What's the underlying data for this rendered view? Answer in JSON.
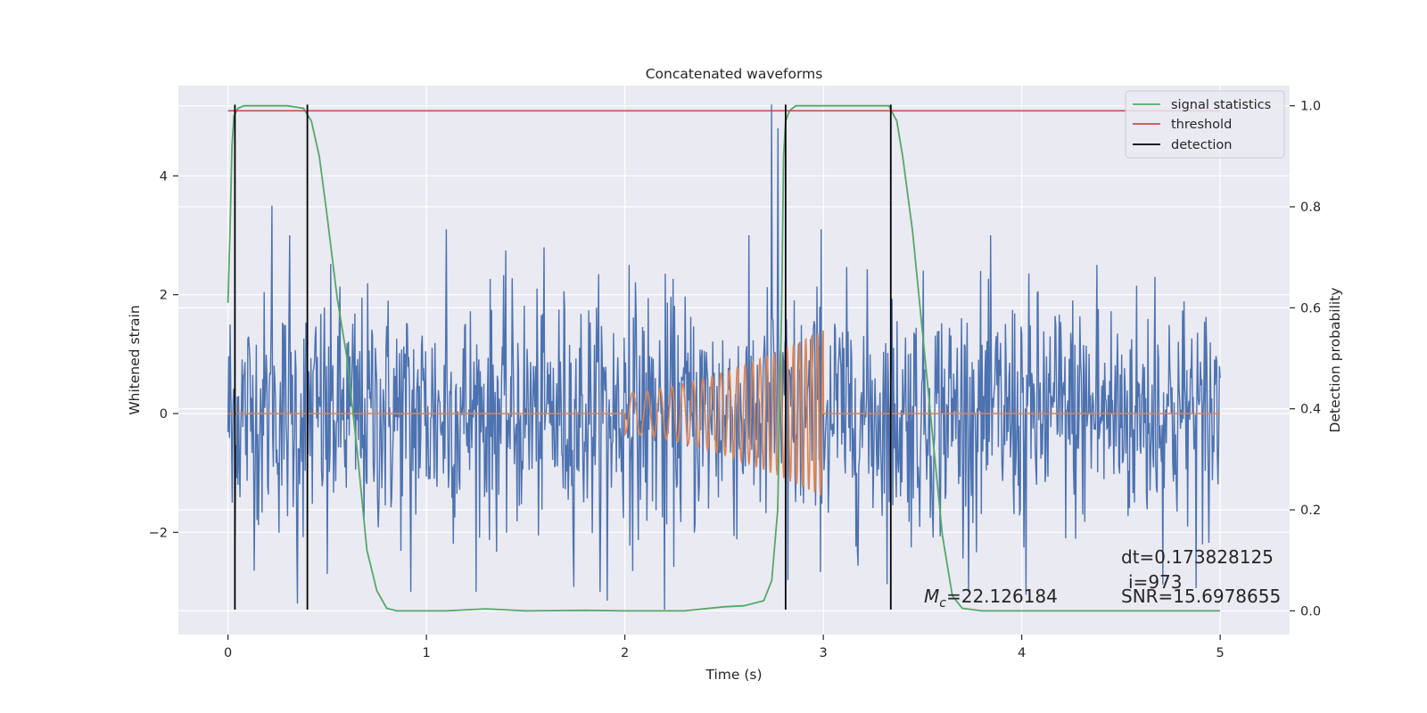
{
  "chart_data": {
    "type": "line",
    "title": "Concatenated waveforms",
    "xlabel": "Time (s)",
    "ylabel": "Whitened strain",
    "ylabel_right": "Detection probability",
    "xlim": [
      -0.25,
      5.35
    ],
    "ylim": [
      -3.72,
      5.52
    ],
    "ylim_right": [
      -0.047,
      1.04
    ],
    "x_ticks": [
      0,
      1,
      2,
      3,
      4,
      5
    ],
    "y_ticks": [
      -2,
      0,
      2,
      4
    ],
    "y_ticks_right": [
      0.0,
      0.2,
      0.4,
      0.6,
      0.8,
      1.0
    ],
    "grid": true,
    "legend_position": "top-right",
    "colors": {
      "noise": "#4c72b0",
      "template": "#dd8452",
      "signal_statistics": "#55a868",
      "threshold": "#c44e52",
      "detection": "#000000",
      "plot_background": "#eaeaf2"
    },
    "series": [
      {
        "name": "signal statistics",
        "axis": "right",
        "x": [
          0.0,
          0.01,
          0.02,
          0.03,
          0.05,
          0.08,
          0.12,
          0.2,
          0.3,
          0.38,
          0.42,
          0.46,
          0.5,
          0.55,
          0.6,
          0.65,
          0.7,
          0.75,
          0.8,
          0.85,
          0.95,
          1.1,
          1.3,
          1.5,
          1.8,
          2.0,
          2.3,
          2.5,
          2.6,
          2.7,
          2.74,
          2.77,
          2.79,
          2.8,
          2.81,
          2.83,
          2.86,
          2.9,
          3.0,
          3.2,
          3.33,
          3.37,
          3.4,
          3.45,
          3.5,
          3.55,
          3.6,
          3.65,
          3.7,
          3.8,
          4.0,
          4.5,
          5.0
        ],
        "y": [
          0.61,
          0.75,
          0.92,
          0.98,
          0.995,
          1.0,
          1.0,
          1.0,
          1.0,
          0.995,
          0.97,
          0.9,
          0.78,
          0.62,
          0.5,
          0.32,
          0.12,
          0.04,
          0.005,
          0.0,
          0.0,
          0.0,
          0.004,
          0.0,
          0.001,
          0.0,
          0.0,
          0.008,
          0.01,
          0.02,
          0.06,
          0.2,
          0.6,
          0.9,
          0.97,
          0.99,
          1.0,
          1.0,
          1.0,
          1.0,
          1.0,
          0.97,
          0.9,
          0.75,
          0.55,
          0.35,
          0.15,
          0.03,
          0.005,
          0.0,
          0.0,
          0.0,
          0.0
        ]
      },
      {
        "name": "threshold",
        "axis": "right",
        "x": [
          0.0,
          5.0
        ],
        "y": [
          0.99,
          0.99
        ]
      },
      {
        "name": "detection",
        "axis": "left",
        "type": "vlines",
        "x": [
          0.035,
          0.4,
          2.81,
          3.34
        ],
        "ymin": -3.3,
        "ymax": 5.2
      },
      {
        "axis": "left",
        "description_free": true,
        "x_start": 0.0,
        "x_end": 5.0,
        "typical_amplitude": 1.4,
        "peak_points": [
          [
            0.01,
            1.5
          ],
          [
            0.02,
            -1.5
          ],
          [
            0.22,
            3.5
          ],
          [
            0.31,
            3.0
          ],
          [
            0.35,
            -3.2
          ],
          [
            0.5,
            -2.7
          ],
          [
            0.92,
            -3.0
          ],
          [
            1.1,
            3.1
          ],
          [
            1.91,
            -3.15
          ],
          [
            2.02,
            2.5
          ],
          [
            2.2,
            -3.3
          ],
          [
            2.74,
            5.2
          ],
          [
            2.77,
            4.8
          ],
          [
            2.82,
            -2.8
          ],
          [
            2.99,
            3.1
          ],
          [
            4.02,
            -3.05
          ],
          [
            4.38,
            2.5
          ],
          [
            4.67,
            2.3
          ],
          [
            4.91,
            -2.2
          ],
          [
            5.0,
            0.6
          ]
        ]
      },
      {
        "axis": "left",
        "description_free": true,
        "x_start": 2.0,
        "x_end": 3.0,
        "amplitude_start": 0.35,
        "amplitude_end": 1.4,
        "frequency_start_hz": 12,
        "frequency_end_hz": 35,
        "baseline": 0.0
      }
    ],
    "legend": [
      "signal statistics",
      "threshold",
      "detection"
    ],
    "annotations": [
      {
        "text": "dt=0.173828125"
      },
      {
        "text": "i=973"
      },
      {
        "text_mathematical_symbol": "M",
        "text_mathematical_subscript": "c",
        "text": "=22.126184"
      },
      {
        "text": "SNR=15.6978655"
      }
    ]
  }
}
